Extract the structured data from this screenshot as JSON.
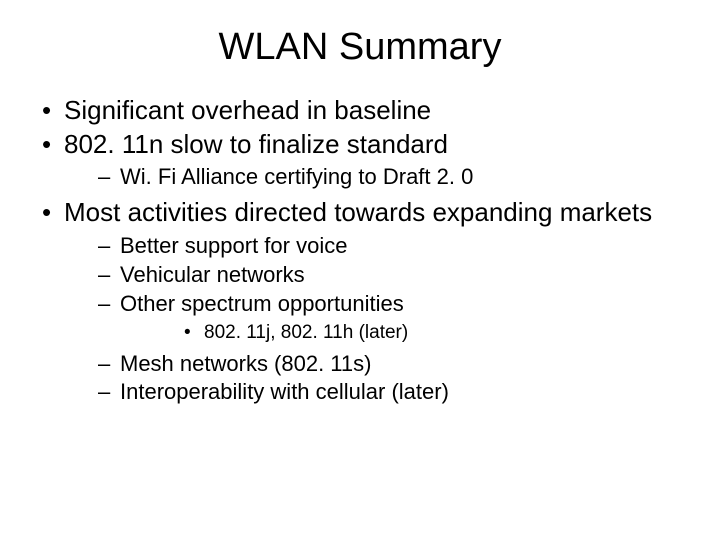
{
  "title": "WLAN Summary",
  "title_fontsize": 38,
  "background_color": "#ffffff",
  "text_color": "#000000",
  "font_family": "Arial",
  "items": {
    "i0": "Significant overhead in baseline",
    "i1": "802. 11n slow to finalize standard",
    "i1_sub": {
      "s0": "Wi. Fi Alliance certifying to Draft 2. 0"
    },
    "i2": "Most activities directed towards expanding markets",
    "i2_sub": {
      "s0": "Better support for voice",
      "s1": "Vehicular networks",
      "s2": "Other spectrum opportunities",
      "s2_sub": {
        "t0": "802. 11j, 802. 11h (later)"
      },
      "s3": "Mesh networks (802. 11s)",
      "s4": "Interoperability with cellular (later)"
    }
  },
  "fontsize_l1": 26,
  "fontsize_l2": 22,
  "fontsize_l3": 19,
  "bullet_l1": "•",
  "bullet_l2": "–",
  "bullet_l3": "•"
}
